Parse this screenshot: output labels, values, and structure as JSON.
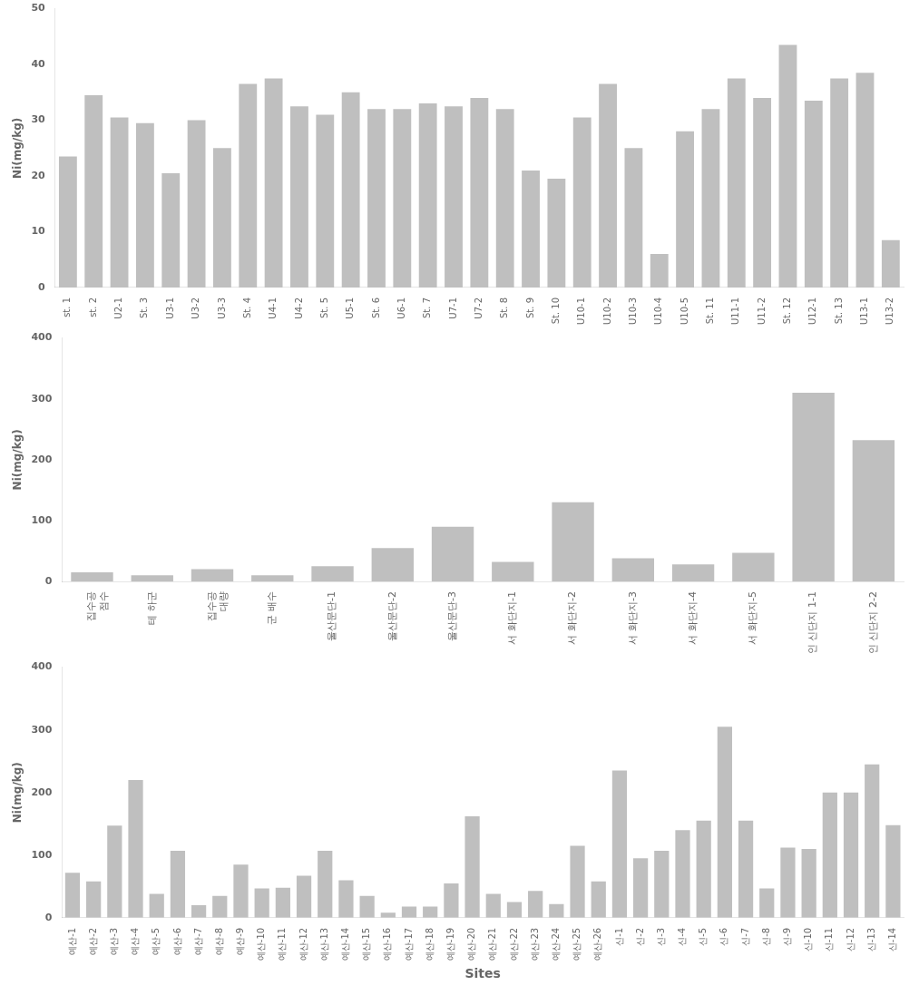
{
  "chart_data": [
    {
      "type": "bar",
      "categories": [
        "st. 1",
        "st. 2",
        "U2-1",
        "St. 3",
        "U3-1",
        "U3-2",
        "U3-3",
        "St. 4",
        "U4-1",
        "U4-2",
        "St. 5",
        "U5-1",
        "St. 6",
        "U6-1",
        "St. 7",
        "U7-1",
        "U7-2",
        "St. 8",
        "St. 9",
        "St. 10",
        "U10-1",
        "U10-2",
        "U10-3",
        "U10-4",
        "U10-5",
        "St. 11",
        "U11-1",
        "U11-2",
        "St. 12",
        "U12-1",
        "St. 13",
        "U13-1",
        "U13-2"
      ],
      "values": [
        23.5,
        34.5,
        30.5,
        29.5,
        20.5,
        30.0,
        25.0,
        36.5,
        37.5,
        32.5,
        31.0,
        35.0,
        32.0,
        32.0,
        33.0,
        32.5,
        34.0,
        32.0,
        21.0,
        19.5,
        30.5,
        36.5,
        25.0,
        6.0,
        28.0,
        32.0,
        37.5,
        34.0,
        43.5,
        33.5,
        37.5,
        38.5,
        8.5
      ],
      "color": "#bfbfbf",
      "ylabel": "Ni(mg/kg)",
      "ylim": [
        0,
        50
      ],
      "yticks": [
        0,
        10,
        20,
        30,
        40,
        50
      ],
      "grid": false
    },
    {
      "type": "bar",
      "categories": [
        "집수공\n점수",
        "테 하군",
        "집수공\n대량",
        "군 배수",
        "울산문단-1",
        "울산문단-2",
        "울산문단-3",
        "서 화단지-1",
        "서 화단지-2",
        "서 화단지-3",
        "서 화단지-4",
        "서 화단지-5",
        "인 신단지 1-1",
        "인 신단지 2-2"
      ],
      "values": [
        15.0,
        10.0,
        20.0,
        10.0,
        25.0,
        55.0,
        90.0,
        32.0,
        130.0,
        38.0,
        28.0,
        47.0,
        310.0,
        232.0
      ],
      "color": "#bfbfbf",
      "ylabel": "Ni(mg/kg)",
      "ylim": [
        0,
        400
      ],
      "yticks": [
        0,
        100,
        200,
        300,
        400
      ],
      "grid": false
    },
    {
      "type": "bar",
      "categories": [
        "예산-1",
        "예산-2",
        "예산-3",
        "예산-4",
        "예산-5",
        "예산-6",
        "예산-7",
        "예산-8",
        "예산-9",
        "예산-10",
        "예산-11",
        "예산-12",
        "예산-13",
        "예산-14",
        "예산-15",
        "예산-16",
        "예산-17",
        "예산-18",
        "예산-19",
        "예산-20",
        "예산-21",
        "예산-22",
        "예산-23",
        "예산-24",
        "예산-25",
        "예산-26",
        "신-1",
        "신-2",
        "신-3",
        "신-4",
        "신-5",
        "신-6",
        "신-7",
        "신-8",
        "신-9",
        "신-10",
        "신-11",
        "신-12",
        "신-13",
        "신-14"
      ],
      "values": [
        72.0,
        58.0,
        147.0,
        220.0,
        38.0,
        107.0,
        20.0,
        35.0,
        85.0,
        47.0,
        48.0,
        67.0,
        107.0,
        60.0,
        35.0,
        8.0,
        18.0,
        18.0,
        55.0,
        162.0,
        38.0,
        25.0,
        43.0,
        22.0,
        115.0,
        58.0,
        235.0,
        95.0,
        107.0,
        140.0,
        155.0,
        305.0,
        155.0,
        47.0,
        112.0,
        110.0,
        200.0,
        200.0,
        245.0,
        148.0
      ],
      "color": "#bfbfbf",
      "ylabel": "Ni(mg/kg)",
      "xlabel": "Sites",
      "ylim": [
        0,
        400
      ],
      "yticks": [
        0,
        100,
        200,
        300,
        400
      ],
      "grid": false
    }
  ]
}
